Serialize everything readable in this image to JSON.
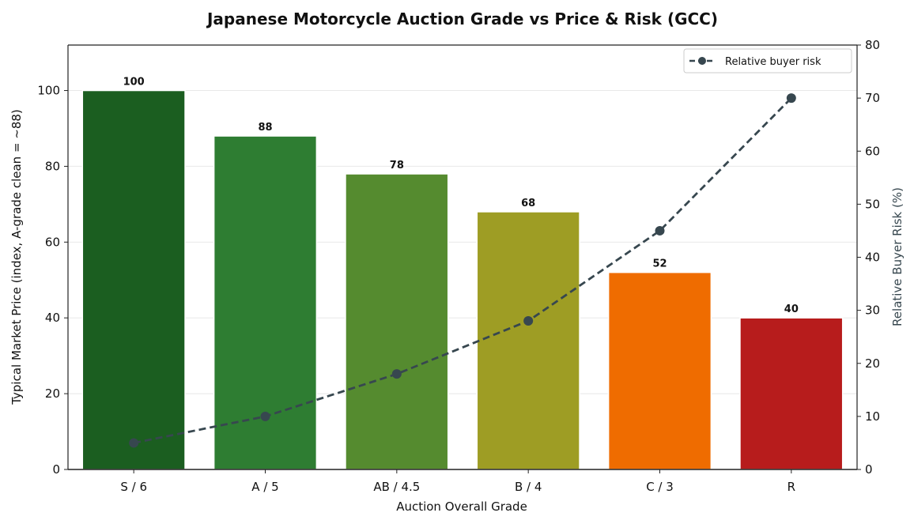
{
  "chart_data": {
    "type": "bar",
    "title": "Japanese Motorcycle Auction Grade vs Price & Risk (GCC)",
    "xlabel": "Auction Overall Grade",
    "ylabel": "Typical Market Price (index, A-grade clean = ~88)",
    "y2label": "Relative Buyer Risk (%)",
    "categories": [
      "S / 6",
      "A / 5",
      "AB / 4.5",
      "B / 4",
      "C / 3",
      "R"
    ],
    "series": [
      {
        "kind": "bar",
        "axis": "left",
        "values": [
          100,
          88,
          78,
          68,
          52,
          40
        ],
        "colors": [
          "#1b5e20",
          "#2e7d32",
          "#558b2f",
          "#9e9d24",
          "#ef6c00",
          "#b71c1c"
        ]
      },
      {
        "kind": "line",
        "axis": "right",
        "name": "Relative buyer risk",
        "values": [
          5,
          10,
          18,
          28,
          45,
          70
        ],
        "color": "#37474f",
        "style": "dashed",
        "marker": "circle"
      }
    ],
    "ylim": [
      0,
      112
    ],
    "y2lim": [
      0,
      80
    ],
    "yticks": [
      0,
      20,
      40,
      60,
      80,
      100
    ],
    "y2ticks": [
      0,
      10,
      20,
      30,
      40,
      50,
      60,
      70,
      80
    ],
    "grid": "y",
    "legend_position": "top-right",
    "data_labels": [
      "100",
      "88",
      "78",
      "68",
      "52",
      "40"
    ]
  }
}
